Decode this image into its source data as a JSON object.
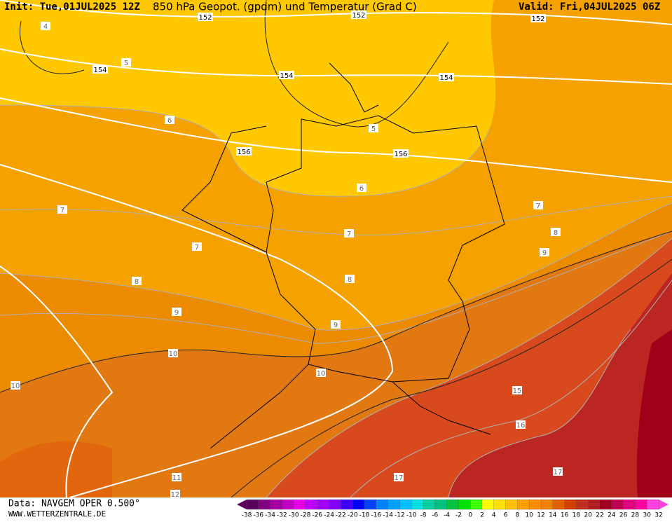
{
  "header": {
    "init": "Init: Tue,01JUL2025 12Z",
    "title": "850 hPa Geopot. (gpdm) und Temperatur (Grad C)",
    "valid": "Valid: Fri,04JUL2025 06Z"
  },
  "map": {
    "geopotential_labels": [
      152,
      152,
      152,
      154,
      154,
      154,
      156,
      156
    ],
    "temperature_labels": [
      4,
      5,
      5,
      6,
      6,
      7,
      7,
      7,
      7,
      8,
      8,
      8,
      9,
      9,
      9,
      10,
      10,
      10,
      11,
      12,
      15,
      16,
      17,
      17
    ]
  },
  "footer": {
    "data": "Data: NAVGEM OPER 0.500°",
    "site": "WWW.WETTERZENTRALE.DE"
  },
  "scale": {
    "labels": [
      -38,
      -36,
      -34,
      -32,
      -30,
      -28,
      -26,
      -24,
      -22,
      -20,
      -18,
      -16,
      -14,
      -12,
      -10,
      -8,
      -6,
      -4,
      -2,
      0,
      2,
      4,
      6,
      8,
      10,
      12,
      14,
      16,
      18,
      20,
      22,
      24,
      26,
      28,
      30,
      32
    ],
    "colors": [
      "#5a005a",
      "#800080",
      "#a000a0",
      "#c000c0",
      "#e000e0",
      "#c000ff",
      "#a000ff",
      "#8000ff",
      "#4000ff",
      "#0000ff",
      "#0040ff",
      "#0080ff",
      "#00a0ff",
      "#00c0ff",
      "#00e0e0",
      "#00d0a0",
      "#00c080",
      "#00c040",
      "#00e000",
      "#40ff00",
      "#ffff00",
      "#ffe000",
      "#ffc000",
      "#ffa000",
      "#ff8c00",
      "#f08000",
      "#e06000",
      "#d04000",
      "#c03020",
      "#b02020",
      "#a00020",
      "#c00050",
      "#e00080",
      "#ff00a0",
      "#ff40e0"
    ]
  }
}
